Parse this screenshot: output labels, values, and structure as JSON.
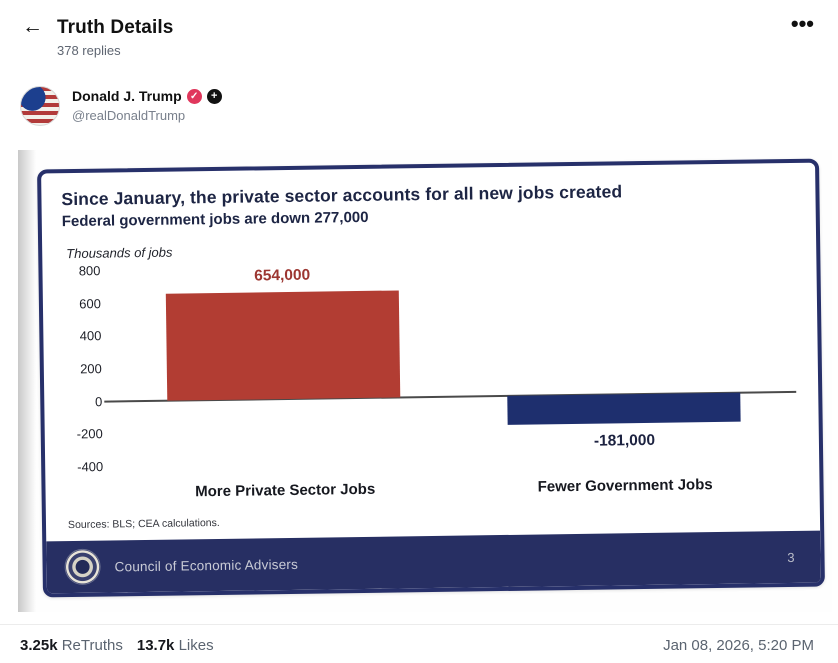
{
  "header": {
    "back_icon": "←",
    "title": "Truth Details",
    "replies": "378 replies",
    "menu_icon": "•••"
  },
  "post": {
    "author": "Donald J. Trump",
    "verified_icon": "✓",
    "plus_icon": "+",
    "handle": "@realDonaldTrump"
  },
  "slide": {
    "footer_text": "Council of Economic Advisers",
    "page_number": "3"
  },
  "chart_data": {
    "type": "bar",
    "title": "Since January, the private sector accounts for all new jobs created",
    "subtitle": "Federal government jobs are down 277,000",
    "ylabel": "Thousands of jobs",
    "categories": [
      "More Private Sector Jobs",
      "Fewer Government Jobs"
    ],
    "values": [
      654,
      -181
    ],
    "value_labels": [
      "654,000",
      "-181,000"
    ],
    "yticks": [
      800,
      600,
      400,
      200,
      0,
      -200,
      -400
    ],
    "ylim": [
      -400,
      800
    ],
    "bar_colors": [
      "#b23d33",
      "#1e2f6e"
    ],
    "grid": false,
    "legend": false,
    "source": "Sources: BLS; CEA calculations."
  },
  "engagement": {
    "retruths_count": "3.25k",
    "retruths_label": "ReTruths",
    "likes_count": "13.7k",
    "likes_label": "Likes",
    "timestamp": "Jan 08, 2026, 5:20 PM"
  }
}
